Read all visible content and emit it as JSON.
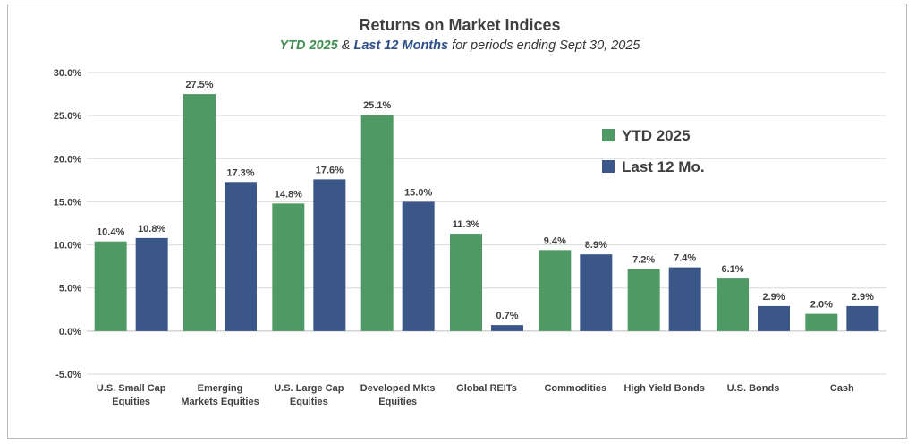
{
  "chart_data": {
    "type": "bar",
    "title": "Returns on Market Indices",
    "subtitle": {
      "part1": "YTD 2025",
      "part2": " & ",
      "part3": "Last 12 Months",
      "part4": " for periods ending Sept 30, 2025"
    },
    "categories": [
      [
        "U.S. Small Cap",
        "Equities"
      ],
      [
        "Emerging",
        "Markets Equities"
      ],
      [
        "U.S. Large Cap",
        "Equities"
      ],
      [
        "Developed Mkts",
        "Equities"
      ],
      [
        "Global REITs"
      ],
      [
        "Commodities"
      ],
      [
        "High Yield Bonds"
      ],
      [
        "U.S. Bonds"
      ],
      [
        "Cash"
      ]
    ],
    "series": [
      {
        "name": "YTD 2025",
        "color": "#4f9a64",
        "values": [
          10.4,
          27.5,
          14.8,
          25.1,
          11.3,
          9.4,
          7.2,
          6.1,
          2.0
        ]
      },
      {
        "name": "Last 12 Mo.",
        "color": "#3a5787",
        "values": [
          10.8,
          17.3,
          17.6,
          15.0,
          0.7,
          8.9,
          7.4,
          2.9,
          2.9
        ]
      }
    ],
    "ylim": [
      -5,
      30
    ],
    "yticks": [
      30,
      25,
      20,
      15,
      10,
      5,
      0,
      -5
    ],
    "ytick_labels": [
      "30.0%",
      "25.0%",
      "20.0%",
      "15.0%",
      "10.0%",
      "5.0%",
      "0.0%",
      "-5.0%"
    ],
    "grid": true,
    "legend_position": "right",
    "subtitle_colors": {
      "ytd": "#3f8f4e",
      "l12": "#2f4f8a"
    }
  }
}
